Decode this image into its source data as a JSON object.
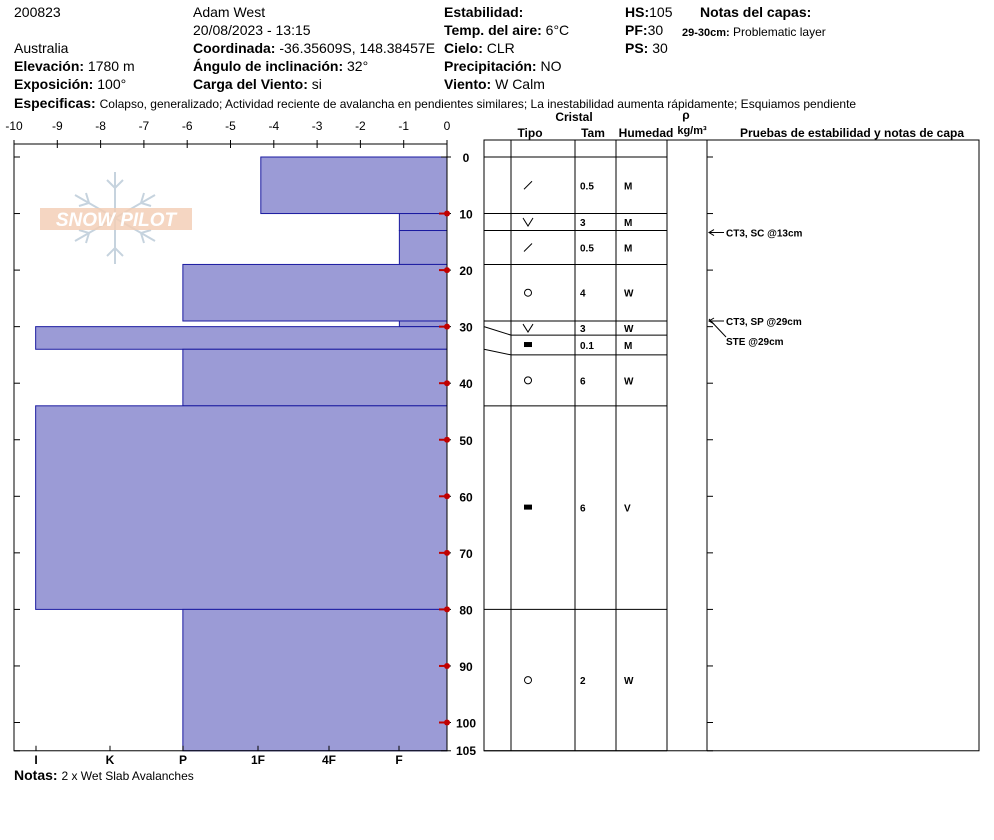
{
  "header": {
    "id": "200823",
    "observer": "Adam West",
    "datetime": "20/08/2023 - 13:15",
    "country": "Australia",
    "coord_label": "Coordinada:",
    "coord_value": "-36.35609S, 148.38457E",
    "elev_label": "Elevación:",
    "elev_value": "1780 m",
    "slope_label": "Ángulo de inclinación:",
    "slope_value": "32°",
    "aspect_label": "Exposición:",
    "aspect_value": "100°",
    "wind_load_label": "Carga del Viento:",
    "wind_load_value": "si",
    "stability_label": "Estabilidad:",
    "air_temp_label": "Temp. del aire:",
    "air_temp_value": "6°C",
    "sky_label": "Cielo:",
    "sky_value": "CLR",
    "precip_label": "Precipitación:",
    "precip_value": "NO",
    "wind_label": "Viento:",
    "wind_value": "W Calm",
    "hs_label": "HS:",
    "hs_value": "105",
    "pf_label": "PF:",
    "pf_value": "30",
    "ps_label": "PS:",
    "ps_value": "30",
    "layer_notes_label": "Notas del capas:",
    "layer_note_range": "29-30cm:",
    "layer_note_text": "Problematic layer",
    "specifics_label": "Especificas:",
    "specifics_value": "Colapso, generalizado; Actividad reciente de avalancha en pendientes similares; La inestabilidad aumenta rápidamente; Esquiamos pendiente",
    "notes_label": "Notas:",
    "notes_value": "2 x Wet Slab Avalanches"
  },
  "logo_text": "SNOW PILOT",
  "columns": {
    "crystal": "Cristal",
    "type": "Tipo",
    "size": "Tam",
    "moisture": "Humedad",
    "rho": "ρ",
    "density_unit": "kg/m³",
    "tests": "Pruebas de estabilidad y notas de capa"
  },
  "colors": {
    "bar_fill": "#9b9bd6",
    "bar_stroke": "#1a1aa0",
    "marker": "#c00000"
  },
  "chart_data": {
    "type": "bar",
    "orientation": "horizontal",
    "x_top_ticks": [
      "-10",
      "-9",
      "-8",
      "-7",
      "-6",
      "-5",
      "-4",
      "-3",
      "-2",
      "-1",
      "0"
    ],
    "x_bottom_ticks": [
      "I",
      "K",
      "P",
      "1F",
      "4F",
      "F"
    ],
    "y_ticks": [
      "0",
      "10",
      "20",
      "30",
      "40",
      "50",
      "60",
      "70",
      "80",
      "90",
      "100",
      "105"
    ],
    "ylim": [
      0,
      105
    ],
    "xlim": [
      -10.3,
      0
    ],
    "temperature_depths": [
      10,
      20,
      30,
      40,
      50,
      60,
      70,
      80,
      90,
      100
    ],
    "hardness_layers": [
      {
        "top": 0,
        "bottom": 10,
        "hardness": -4.3
      },
      {
        "top": 10,
        "bottom": 13,
        "hardness": -1.1
      },
      {
        "top": 13,
        "bottom": 19,
        "hardness": -1.1
      },
      {
        "top": 19,
        "bottom": 29,
        "hardness": -6.1
      },
      {
        "top": 29,
        "bottom": 30,
        "hardness": -1.1
      },
      {
        "top": 30,
        "bottom": 34,
        "hardness": -9.5
      },
      {
        "top": 34,
        "bottom": 44,
        "hardness": -6.1
      },
      {
        "top": 44,
        "bottom": 80,
        "hardness": -9.5
      },
      {
        "top": 80,
        "bottom": 105,
        "hardness": -6.1
      }
    ],
    "layer_rows": [
      {
        "top": 0,
        "bottom": 10,
        "type": "slash",
        "size": "0.5",
        "moisture": "M"
      },
      {
        "top": 10,
        "bottom": 13,
        "type": "vee",
        "size": "3",
        "moisture": "M"
      },
      {
        "top": 13,
        "bottom": 19,
        "type": "slash",
        "size": "0.5",
        "moisture": "M"
      },
      {
        "top": 19,
        "bottom": 29,
        "type": "circle",
        "size": "4",
        "moisture": "W"
      },
      {
        "top": 29,
        "bottom": 31.5,
        "type": "vee",
        "size": "3",
        "moisture": "W"
      },
      {
        "top": 31.5,
        "bottom": 35,
        "type": "square",
        "size": "0.1",
        "moisture": "M"
      },
      {
        "top": 35,
        "bottom": 44,
        "type": "circle",
        "size": "6",
        "moisture": "W"
      },
      {
        "top": 44,
        "bottom": 80,
        "type": "square",
        "size": "6",
        "moisture": "V"
      },
      {
        "top": 80,
        "bottom": 105,
        "type": "circle",
        "size": "2",
        "moisture": "W"
      }
    ],
    "profile_layer_depths": [
      0,
      10,
      13,
      19,
      29,
      30,
      34,
      44,
      80,
      105
    ],
    "tests": [
      {
        "depth": 13,
        "label": "CT3, SC @13cm"
      },
      {
        "depth": 29,
        "label": "CT3, SP @29cm"
      },
      {
        "depth": 29,
        "label": "STE @29cm"
      }
    ]
  }
}
